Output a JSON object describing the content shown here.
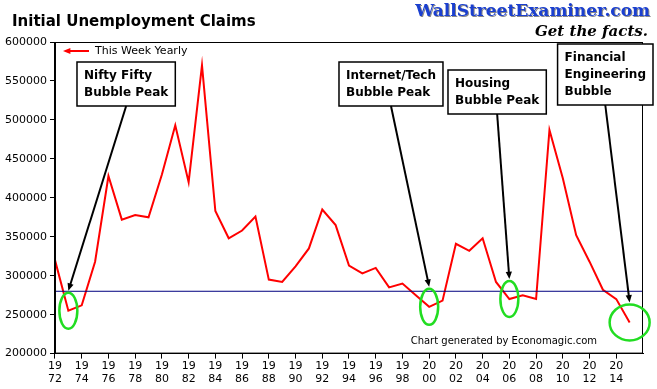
{
  "chart_data": {
    "type": "line",
    "title": "Initial Unemployment Claims",
    "site": "WallStreetExaminer.com",
    "tagline": "Get the facts.",
    "credit": "Chart generated by Economagic.com",
    "x": [
      1972,
      1973,
      1974,
      1975,
      1976,
      1977,
      1978,
      1979,
      1980,
      1981,
      1982,
      1983,
      1984,
      1985,
      1986,
      1987,
      1988,
      1989,
      1990,
      1991,
      1992,
      1993,
      1994,
      1995,
      1996,
      1997,
      1998,
      1999,
      2000,
      2001,
      2002,
      2003,
      2004,
      2005,
      2006,
      2007,
      2008,
      2009,
      2010,
      2011,
      2012,
      2013,
      2014,
      2015
    ],
    "series": [
      {
        "name": "This Week Yearly",
        "color": "#ff0000",
        "marker": "none",
        "line_style": "solid",
        "values": [
          320000,
          255000,
          262000,
          318000,
          428000,
          372000,
          378000,
          375000,
          430000,
          493000,
          420000,
          570000,
          383000,
          348000,
          358000,
          376000,
          295000,
          292000,
          312000,
          335000,
          385000,
          365000,
          313000,
          303000,
          310000,
          285000,
          290000,
          275000,
          260000,
          268000,
          341000,
          332000,
          348000,
          292000,
          270000,
          275000,
          270000,
          487000,
          425000,
          352000,
          318000,
          282000,
          270000,
          240000
        ]
      }
    ],
    "reference_line": {
      "value": 280000,
      "color": "#000080"
    },
    "annotations": [
      {
        "text": "Nifty Fifty\nBubble Peak",
        "x": 1973,
        "value": 255000
      },
      {
        "text": "Internet/Tech\nBubble Peak",
        "x": 2000,
        "value": 260000
      },
      {
        "text": "Housing\nBubble Peak",
        "x": 2006,
        "value": 270000
      },
      {
        "text": "Financial\nEngineering\nBubble",
        "x": 2015,
        "value": 240000
      }
    ],
    "xlim": [
      1972,
      2016
    ],
    "xticks": [
      {
        "value": 1972,
        "label": "19\n72"
      },
      {
        "value": 1974,
        "label": "19\n74"
      },
      {
        "value": 1976,
        "label": "19\n76"
      },
      {
        "value": 1978,
        "label": "19\n78"
      },
      {
        "value": 1980,
        "label": "19\n80"
      },
      {
        "value": 1982,
        "label": "19\n82"
      },
      {
        "value": 1984,
        "label": "19\n84"
      },
      {
        "value": 1986,
        "label": "19\n86"
      },
      {
        "value": 1988,
        "label": "19\n88"
      },
      {
        "value": 1990,
        "label": "19\n90"
      },
      {
        "value": 1992,
        "label": "19\n92"
      },
      {
        "value": 1994,
        "label": "19\n94"
      },
      {
        "value": 1996,
        "label": "19\n96"
      },
      {
        "value": 1998,
        "label": "19\n98"
      },
      {
        "value": 2000,
        "label": "20\n00"
      },
      {
        "value": 2002,
        "label": "20\n02"
      },
      {
        "value": 2004,
        "label": "20\n04"
      },
      {
        "value": 2006,
        "label": "20\n06"
      },
      {
        "value": 2008,
        "label": "20\n08"
      },
      {
        "value": 2010,
        "label": "20\n10"
      },
      {
        "value": 2012,
        "label": "20\n12"
      },
      {
        "value": 2014,
        "label": "20\n14"
      }
    ],
    "ylim": [
      200000,
      600000
    ],
    "yticks": [
      200000,
      250000,
      300000,
      350000,
      400000,
      450000,
      500000,
      550000,
      600000
    ],
    "grid": false,
    "legend": "top left"
  }
}
